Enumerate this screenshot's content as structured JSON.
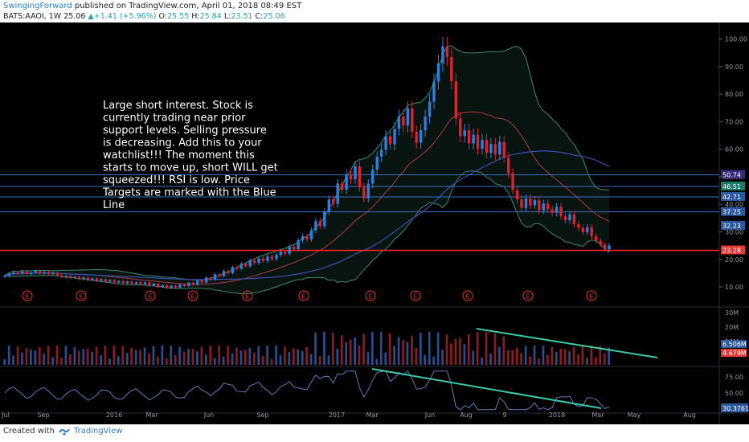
{
  "header": {
    "author": "SwingingForward",
    "published": " published on TradingView.com, April 01, 2018 08:49 EST",
    "symbol": "BATS:AAOI, 1W",
    "last": "25.06",
    "change": "+1.41 (+5.96%)",
    "open_label": "O:",
    "open": "25.55",
    "high_label": "H:",
    "high": "25.84",
    "low_label": "L:",
    "low": "23.51",
    "close_label": "C:",
    "close": "25.06"
  },
  "annotation": "Large short interest. Stock is currently trading near prior support levels. Selling pressure is decreasing. Add this to your watchlist!!! The moment this starts to move up, short WILL get squeezed!!!  RSI is low.  Price Targets are marked with the Blue Line",
  "footer": {
    "created_with": "Created with",
    "brand": "TradingView"
  },
  "colors": {
    "background": "#000000",
    "up": "#2f7fe0",
    "down": "#e0202a",
    "target_line": "#3b6fc4",
    "support_line": "#ff2020",
    "trend_line": "#3cc9a8",
    "rsi_line": "#5d7fb5"
  },
  "chart_data": {
    "type": "candlestick",
    "timeframe": "1W",
    "price_axis": {
      "ticks": [
        10,
        20,
        30,
        40,
        50,
        60,
        70,
        80,
        90,
        100
      ],
      "ylim": [
        3,
        104
      ]
    },
    "time_axis": {
      "ticks": [
        "Jul",
        "Sep",
        "2016",
        "Mar",
        "Jun",
        "Sep",
        "2017",
        "Mar",
        "Jun",
        "Aug",
        "9",
        "2018",
        "Mar",
        "May",
        "Aug"
      ]
    },
    "price_targets": [
      50.74,
      46.51,
      42.71,
      37.25
    ],
    "support_level": 23.28,
    "price_badges": [
      {
        "label": "50.74",
        "value": 50.74,
        "color": "#3b2a7a"
      },
      {
        "label": "46.51",
        "value": 46.51,
        "color": "#1e7b6a"
      },
      {
        "label": "42.71",
        "value": 42.71,
        "color": "#2c5aa0"
      },
      {
        "label": "37.25",
        "value": 37.25,
        "color": "#2c5aa0"
      },
      {
        "label": "32.23",
        "value": 32.23,
        "color": "#2c5aa0"
      },
      {
        "label": "23.28",
        "value": 23.28,
        "color": "#e53935"
      }
    ],
    "earnings_markers": [
      "E",
      "E",
      "E",
      "E",
      "E",
      "E",
      "E",
      "E",
      "E",
      "E",
      "E",
      "E"
    ],
    "closes": [
      14.1,
      14.8,
      15.3,
      14.9,
      15.6,
      14.7,
      15.2,
      15.8,
      14.9,
      15.4,
      14.6,
      15.1,
      14.2,
      13.6,
      14.0,
      13.3,
      13.7,
      12.9,
      13.4,
      12.6,
      13.1,
      12.2,
      12.8,
      11.9,
      12.5,
      11.6,
      12.1,
      11.4,
      11.9,
      11.1,
      11.7,
      10.9,
      11.6,
      10.5,
      11.2,
      9.9,
      10.6,
      9.6,
      10.4,
      9.8,
      10.9,
      10.3,
      11.5,
      10.7,
      12.3,
      11.6,
      13.4,
      12.7,
      14.6,
      13.9,
      15.8,
      15.0,
      17.2,
      16.6,
      18.4,
      17.5,
      19.6,
      18.7,
      20.3,
      19.4,
      21.0,
      20.1,
      21.6,
      22.8,
      22.1,
      24.6,
      23.7,
      26.9,
      28.4,
      27.3,
      30.6,
      33.9,
      32.1,
      37.4,
      41.8,
      40.2,
      47.6,
      45.3,
      50.9,
      49.1,
      53.8,
      46.2,
      42.1,
      47.5,
      52.6,
      57.3,
      59.8,
      64.7,
      61.8,
      67.4,
      71.9,
      68.6,
      74.8,
      66.3,
      62.4,
      66.9,
      71.8,
      77.3,
      84.6,
      91.2,
      97.4,
      93.5,
      84.7,
      71.2,
      64.8,
      66.9,
      62.1,
      65.3,
      60.2,
      63.4,
      58.7,
      61.9,
      58.1,
      62.7,
      56.9,
      51.3,
      45.2,
      41.8,
      38.7,
      42.1,
      39.6,
      41.5,
      37.8,
      40.3,
      38.2,
      36.9,
      39.1,
      35.7,
      34.2,
      36.4,
      32.8,
      31.5,
      29.9,
      31.7,
      28.4,
      26.8,
      25.3,
      23.65,
      25.06
    ],
    "volume_axis": {
      "ticks": [
        "30M",
        "20M",
        "10M"
      ],
      "badges": [
        "6.506M",
        "4.679M"
      ]
    },
    "rsi_axis": {
      "ticks": [
        75,
        50
      ],
      "current": "30.3761"
    }
  }
}
